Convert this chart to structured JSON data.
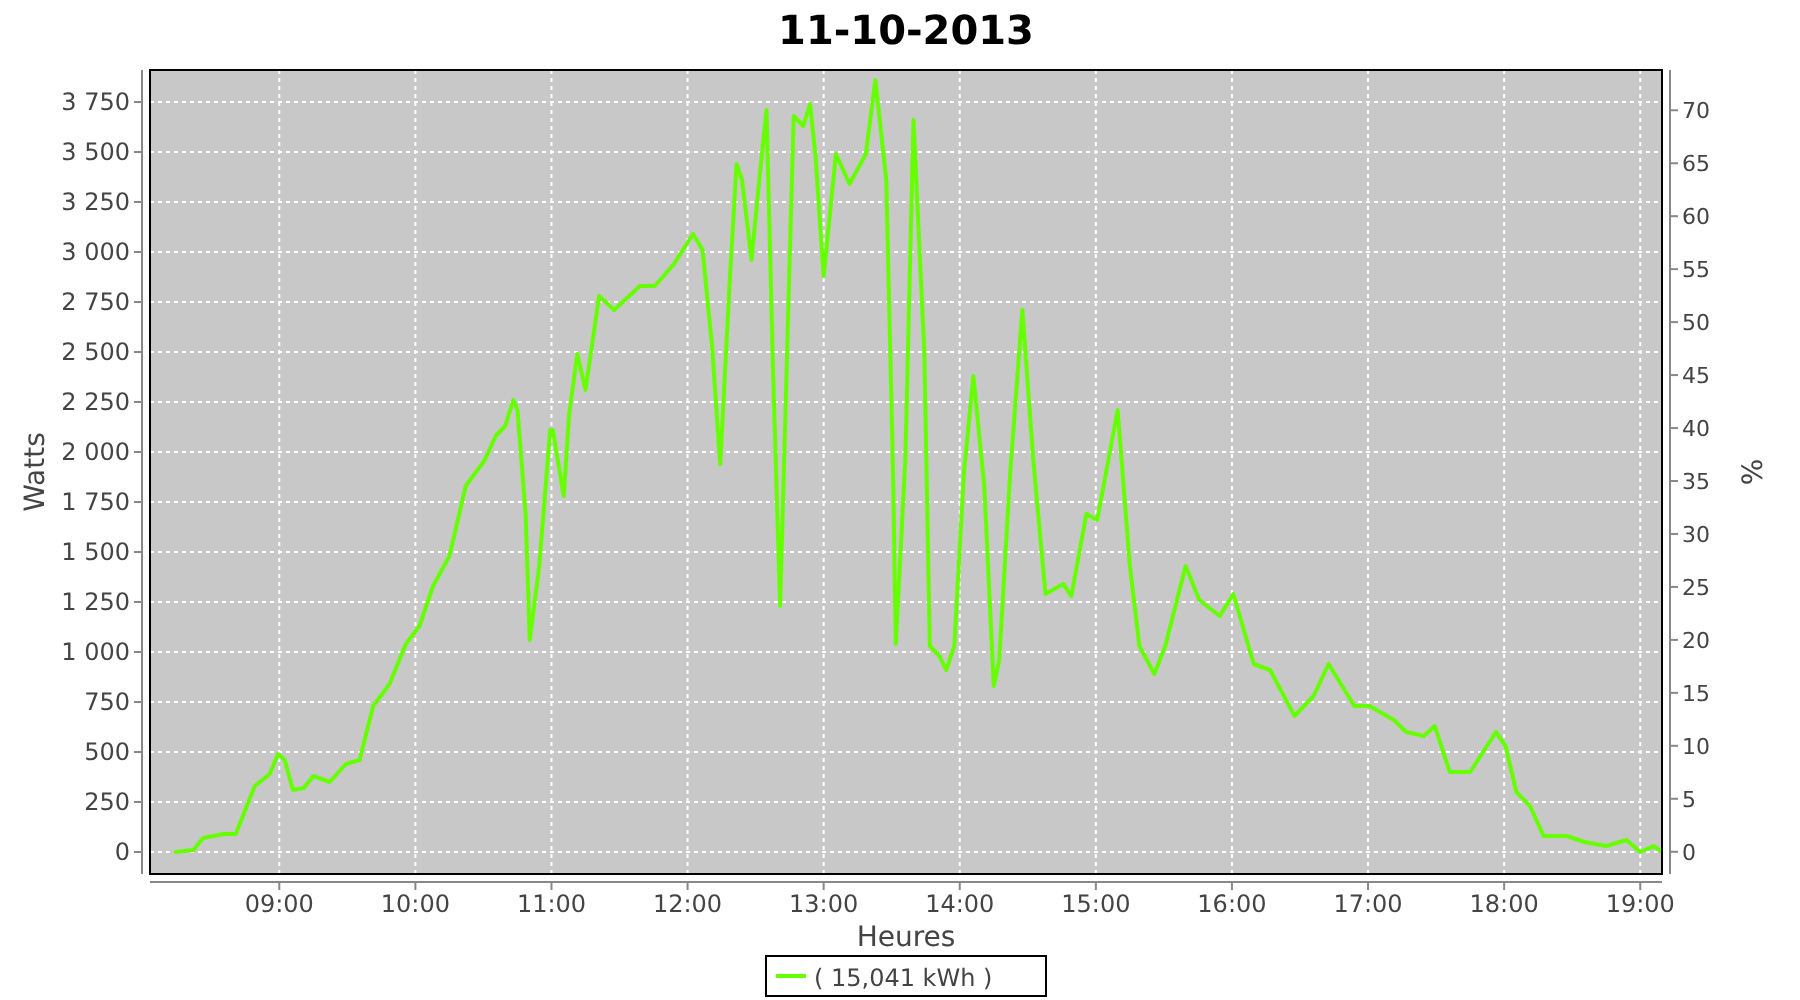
{
  "chart_data": {
    "type": "line",
    "title": "11-10-2013",
    "xlabel": "Heures",
    "ylabel": "Watts",
    "y2label": "%",
    "x": [
      8.24,
      8.37,
      8.44,
      8.59,
      8.68,
      8.82,
      8.93,
      8.99,
      9.04,
      9.1,
      9.18,
      9.25,
      9.37,
      9.49,
      9.59,
      9.69,
      9.81,
      9.93,
      10.03,
      10.13,
      10.25,
      10.37,
      10.51,
      10.59,
      10.66,
      10.72,
      10.75,
      10.81,
      10.84,
      10.91,
      10.99,
      11.01,
      11.09,
      11.13,
      11.19,
      11.25,
      11.35,
      11.46,
      11.65,
      11.76,
      11.9,
      12.04,
      12.11,
      12.18,
      12.24,
      12.31,
      12.36,
      12.4,
      12.47,
      12.53,
      12.58,
      12.63,
      12.68,
      12.75,
      12.78,
      12.85,
      12.9,
      12.94,
      13.0,
      13.09,
      13.19,
      13.31,
      13.38,
      13.46,
      13.51,
      13.53,
      13.6,
      13.66,
      13.74,
      13.78,
      13.85,
      13.9,
      13.96,
      14.03,
      14.1,
      14.18,
      14.25,
      14.29,
      14.37,
      14.46,
      14.54,
      14.63,
      14.76,
      14.82,
      14.93,
      15.01,
      15.16,
      15.25,
      15.32,
      15.43,
      15.51,
      15.66,
      15.76,
      15.91,
      16.01,
      16.16,
      16.28,
      16.46,
      16.6,
      16.71,
      16.9,
      17.01,
      17.19,
      17.28,
      17.41,
      17.49,
      17.6,
      17.75,
      17.94,
      18.01,
      18.09,
      18.19,
      18.29,
      18.46,
      18.59,
      18.75,
      18.9,
      19.0,
      19.1,
      19.16
    ],
    "series": [
      {
        "name": "( 15,041 kWh )",
        "color": "#66ff00",
        "values": [
          0,
          10,
          70,
          90,
          90,
          330,
          390,
          490,
          460,
          310,
          320,
          380,
          350,
          440,
          460,
          730,
          840,
          1040,
          1130,
          1330,
          1480,
          1830,
          1960,
          2080,
          2130,
          2260,
          2210,
          1690,
          1060,
          1430,
          2110,
          2110,
          1780,
          2190,
          2490,
          2310,
          2780,
          2710,
          2830,
          2830,
          2940,
          3090,
          3010,
          2530,
          1940,
          2860,
          3440,
          3360,
          2960,
          3380,
          3710,
          2360,
          1230,
          2960,
          3680,
          3630,
          3740,
          3480,
          2880,
          3490,
          3340,
          3490,
          3860,
          3360,
          1890,
          1040,
          1960,
          3660,
          2490,
          1030,
          980,
          910,
          1030,
          1890,
          2380,
          1830,
          830,
          960,
          1890,
          2710,
          1960,
          1290,
          1340,
          1280,
          1690,
          1660,
          2210,
          1430,
          1030,
          890,
          1030,
          1430,
          1260,
          1180,
          1290,
          940,
          910,
          680,
          780,
          940,
          730,
          730,
          660,
          600,
          580,
          630,
          400,
          400,
          600,
          530,
          300,
          230,
          80,
          80,
          50,
          30,
          60,
          0,
          30,
          0
        ]
      }
    ],
    "xlim": [
      8.05,
      19.16
    ],
    "xticks": [
      {
        "value": 9,
        "label": "09:00"
      },
      {
        "value": 10,
        "label": "10:00"
      },
      {
        "value": 11,
        "label": "11:00"
      },
      {
        "value": 12,
        "label": "12:00"
      },
      {
        "value": 13,
        "label": "13:00"
      },
      {
        "value": 14,
        "label": "14:00"
      },
      {
        "value": 15,
        "label": "15:00"
      },
      {
        "value": 16,
        "label": "16:00"
      },
      {
        "value": 17,
        "label": "17:00"
      },
      {
        "value": 18,
        "label": "18:00"
      },
      {
        "value": 19,
        "label": "19:00"
      }
    ],
    "ylim": [
      -110,
      3910
    ],
    "yticks": [
      0,
      250,
      500,
      750,
      {
        "value": 1000,
        "label": "1 000"
      },
      {
        "value": 1250,
        "label": "1 250"
      },
      {
        "value": 1500,
        "label": "1 500"
      },
      {
        "value": 1750,
        "label": "1 750"
      },
      {
        "value": 2000,
        "label": "2 000"
      },
      {
        "value": 2250,
        "label": "2 250"
      },
      {
        "value": 2500,
        "label": "2 500"
      },
      {
        "value": 2750,
        "label": "2 750"
      },
      {
        "value": 3000,
        "label": "3 000"
      },
      {
        "value": 3250,
        "label": "3 250"
      },
      {
        "value": 3500,
        "label": "3 500"
      },
      {
        "value": 3750,
        "label": "3 750"
      }
    ],
    "y2lim": [
      -2.1,
      73.8
    ],
    "y2ticks": [
      0,
      5,
      10,
      15,
      20,
      25,
      30,
      35,
      40,
      45,
      50,
      55,
      60,
      65,
      70
    ],
    "grid": true,
    "legend": "bottom",
    "line_style": "solid",
    "marker": "none"
  }
}
